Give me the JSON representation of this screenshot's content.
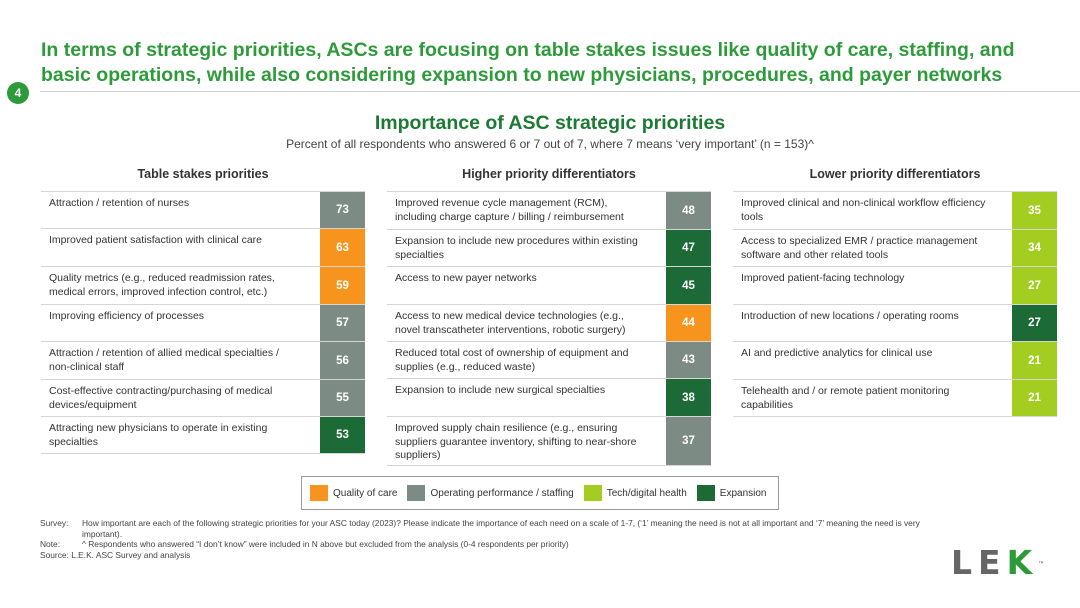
{
  "header": {
    "headline": "In terms of strategic priorities, ASCs are focusing on table stakes issues like quality of care, staffing, and basic operations, while also considering expansion to new physicians, procedures, and payer networks",
    "page_number": "4"
  },
  "colors": {
    "Quality of care": "#f7941d",
    "Operating performance / staffing": "#7d8b85",
    "Tech/digital health": "#a3cd20",
    "Expansion": "#1c6b36"
  },
  "chart_data": {
    "type": "table",
    "title": "Importance of ASC strategic priorities",
    "subtitle": "Percent of all respondents who answered 6 or 7 out of 7, where 7 means ‘very important’ (n = 153)^",
    "legend": [
      {
        "name": "Quality of care",
        "color": "#f7941d"
      },
      {
        "name": "Operating performance / staffing",
        "color": "#7d8b85"
      },
      {
        "name": "Tech/digital health",
        "color": "#a3cd20"
      },
      {
        "name": "Expansion",
        "color": "#1c6b36"
      }
    ],
    "groups": [
      {
        "title": "Table stakes priorities",
        "rows": [
          {
            "label": "Attraction / retention of nurses",
            "value": 73,
            "category": "Operating performance / staffing"
          },
          {
            "label": "Improved patient satisfaction with clinical care",
            "value": 63,
            "category": "Quality of care"
          },
          {
            "label": "Quality metrics (e.g., reduced readmission rates, medical errors, improved infection control, etc.)",
            "value": 59,
            "category": "Quality of care"
          },
          {
            "label": "Improving efficiency of processes",
            "value": 57,
            "category": "Operating performance / staffing"
          },
          {
            "label": "Attraction / retention of allied medical specialties / non-clinical staff",
            "value": 56,
            "category": "Operating performance / staffing"
          },
          {
            "label": "Cost-effective contracting/purchasing of medical devices/equipment",
            "value": 55,
            "category": "Operating performance / staffing"
          },
          {
            "label": "Attracting new physicians to operate in existing specialties",
            "value": 53,
            "category": "Expansion"
          }
        ]
      },
      {
        "title": "Higher priority differentiators",
        "rows": [
          {
            "label": "Improved revenue cycle management (RCM), including charge capture / billing / reimbursement",
            "value": 48,
            "category": "Operating performance / staffing"
          },
          {
            "label": "Expansion to include new procedures within existing specialties",
            "value": 47,
            "category": "Expansion"
          },
          {
            "label": "Access to new payer networks",
            "value": 45,
            "category": "Expansion"
          },
          {
            "label": "Access to new medical device technologies (e.g., novel transcatheter interventions, robotic surgery)",
            "value": 44,
            "category": "Quality of care"
          },
          {
            "label": "Reduced total cost of ownership of equipment and supplies (e.g., reduced waste)",
            "value": 43,
            "category": "Operating performance / staffing"
          },
          {
            "label": "Expansion to include new surgical specialties",
            "value": 38,
            "category": "Expansion"
          },
          {
            "label": "Improved supply chain resilience (e.g., ensuring suppliers guarantee inventory, shifting to near-shore suppliers)",
            "value": 37,
            "category": "Operating performance / staffing"
          }
        ]
      },
      {
        "title": "Lower priority differentiators",
        "rows": [
          {
            "label": "Improved clinical and non-clinical workflow efficiency tools",
            "value": 35,
            "category": "Tech/digital health"
          },
          {
            "label": "Access to specialized EMR / practice management software and other related tools",
            "value": 34,
            "category": "Tech/digital health"
          },
          {
            "label": "Improved patient-facing technology",
            "value": 27,
            "category": "Tech/digital health"
          },
          {
            "label": "Introduction of new locations / operating rooms",
            "value": 27,
            "category": "Expansion"
          },
          {
            "label": "AI and predictive analytics for clinical use",
            "value": 21,
            "category": "Tech/digital health"
          },
          {
            "label": "Telehealth and / or remote patient monitoring capabilities",
            "value": 21,
            "category": "Tech/digital health"
          }
        ]
      }
    ]
  },
  "notes": {
    "survey_key": "Survey:",
    "survey_text": "How important are each of the following strategic priorities for your ASC today (2023)? Please indicate the importance of each need on a scale of 1-7, (‘1’ meaning the need is not at all important and ‘7’ meaning the need is very important).",
    "note_key": "Note:",
    "note_text": "^ Respondents who answered “I don’t know” were included in N above but excluded from the analysis (0-4 respondents per priority)",
    "source_text": "Source: L.E.K. ASC Survey and analysis"
  },
  "logo": {
    "letters": [
      "L",
      "E",
      "K"
    ],
    "tm": "™"
  }
}
